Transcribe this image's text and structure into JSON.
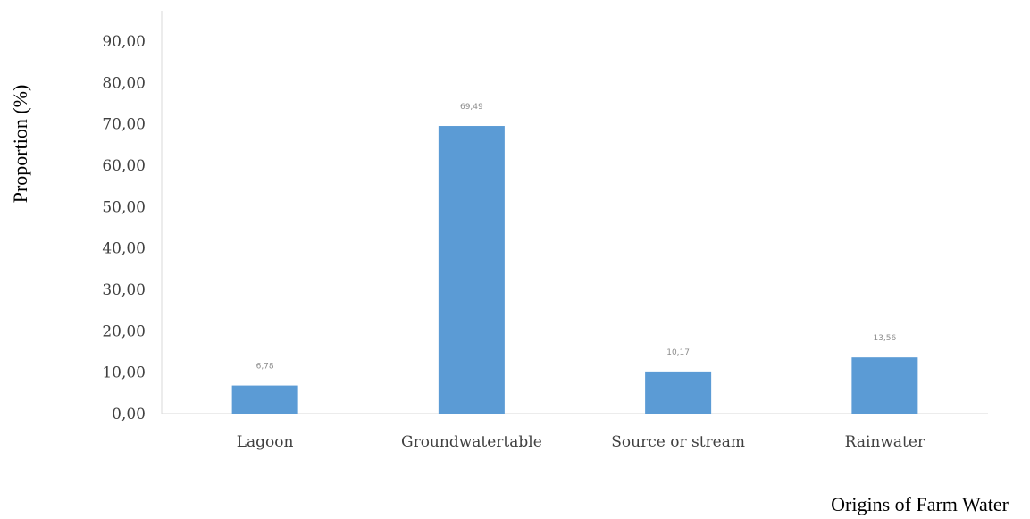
{
  "chart_data": {
    "type": "bar",
    "categories": [
      "Lagoon",
      "Groundwatertable",
      "Source or stream",
      "Rainwater"
    ],
    "values": [
      6.78,
      69.49,
      10.17,
      13.56
    ],
    "data_labels": [
      "6,78",
      "69,49",
      "10,17",
      "13,56"
    ],
    "title": "",
    "xlabel": "Origins of Farm Water",
    "ylabel": "Proportion (%)",
    "ylim": [
      0,
      90
    ],
    "yticks": [
      0,
      10,
      20,
      30,
      40,
      50,
      60,
      70,
      80,
      90
    ],
    "ytick_labels": [
      "0,00",
      "10,00",
      "20,00",
      "30,00",
      "40,00",
      "50,00",
      "60,00",
      "70,00",
      "80,00",
      "90,00"
    ],
    "grid": false,
    "legend": "none",
    "bar_color": "#5b9bd5",
    "axis_color": "#d9d9d9"
  }
}
